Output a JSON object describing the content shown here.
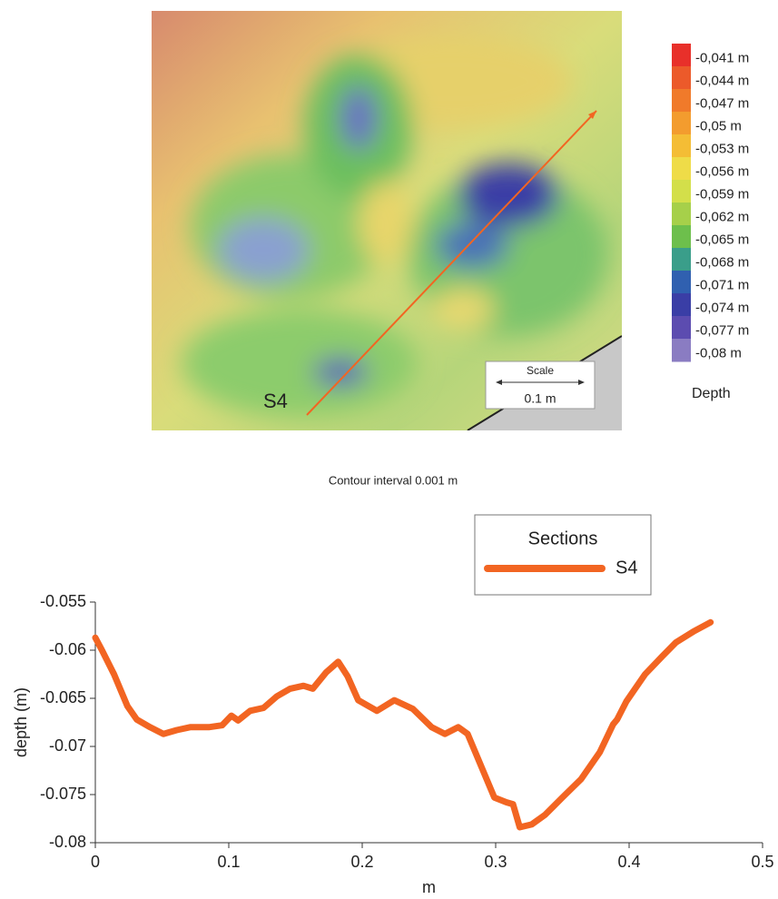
{
  "map": {
    "section_label": "S4",
    "scale_title": "Scale",
    "scale_value": "0.1 m",
    "colorbar": {
      "title": "Depth",
      "labels": [
        "-0,041  m",
        "-0,044  m",
        "-0,047  m",
        "-0,05  m",
        "-0,053  m",
        "-0,056  m",
        "-0,059  m",
        "-0,062  m",
        "-0,065  m",
        "-0,068  m",
        "-0,071  m",
        "-0,074  m",
        "-0,077  m",
        "-0,08  m"
      ],
      "colors": [
        "#e8302a",
        "#ec5a2a",
        "#f07a2a",
        "#f39c2e",
        "#f4bd35",
        "#efdc48",
        "#d3df4a",
        "#a6d04a",
        "#6dbf4c",
        "#3a9e8a",
        "#3060b0",
        "#3a3ea6",
        "#5c4cb0",
        "#8a7cc2"
      ]
    }
  },
  "caption": "Contour interval 0.001 m",
  "chart_data": {
    "type": "line",
    "xlabel": "m",
    "ylabel": "depth (m)",
    "legend_title": "Sections",
    "xlim": [
      0,
      0.5
    ],
    "ylim": [
      -0.08,
      -0.055
    ],
    "xticks": [
      0,
      0.1,
      0.2,
      0.3,
      0.4,
      0.5
    ],
    "yticks": [
      -0.08,
      -0.075,
      -0.07,
      -0.065,
      -0.06,
      -0.055
    ],
    "series": [
      {
        "name": "S4",
        "color": "#f26522",
        "x": [
          0,
          0.005,
          0.014,
          0.024,
          0.031,
          0.041,
          0.051,
          0.061,
          0.071,
          0.085,
          0.095,
          0.102,
          0.107,
          0.116,
          0.126,
          0.136,
          0.146,
          0.156,
          0.163,
          0.173,
          0.182,
          0.189,
          0.197,
          0.211,
          0.224,
          0.238,
          0.252,
          0.262,
          0.272,
          0.279,
          0.289,
          0.299,
          0.308,
          0.313,
          0.318,
          0.327,
          0.337,
          0.35,
          0.364,
          0.378,
          0.388,
          0.391,
          0.398,
          0.412,
          0.425,
          0.435,
          0.449,
          0.461
        ],
        "values": [
          -0.0587,
          -0.06,
          -0.0625,
          -0.0658,
          -0.0672,
          -0.068,
          -0.0687,
          -0.0683,
          -0.068,
          -0.068,
          -0.0678,
          -0.0668,
          -0.0673,
          -0.0663,
          -0.066,
          -0.0648,
          -0.064,
          -0.0637,
          -0.064,
          -0.0623,
          -0.0612,
          -0.0627,
          -0.0652,
          -0.0663,
          -0.0652,
          -0.0661,
          -0.068,
          -0.0687,
          -0.068,
          -0.0687,
          -0.072,
          -0.0753,
          -0.0758,
          -0.076,
          -0.0784,
          -0.0781,
          -0.0771,
          -0.0753,
          -0.0734,
          -0.0706,
          -0.0677,
          -0.0672,
          -0.0653,
          -0.0625,
          -0.0606,
          -0.0592,
          -0.058,
          -0.0571
        ]
      }
    ]
  }
}
